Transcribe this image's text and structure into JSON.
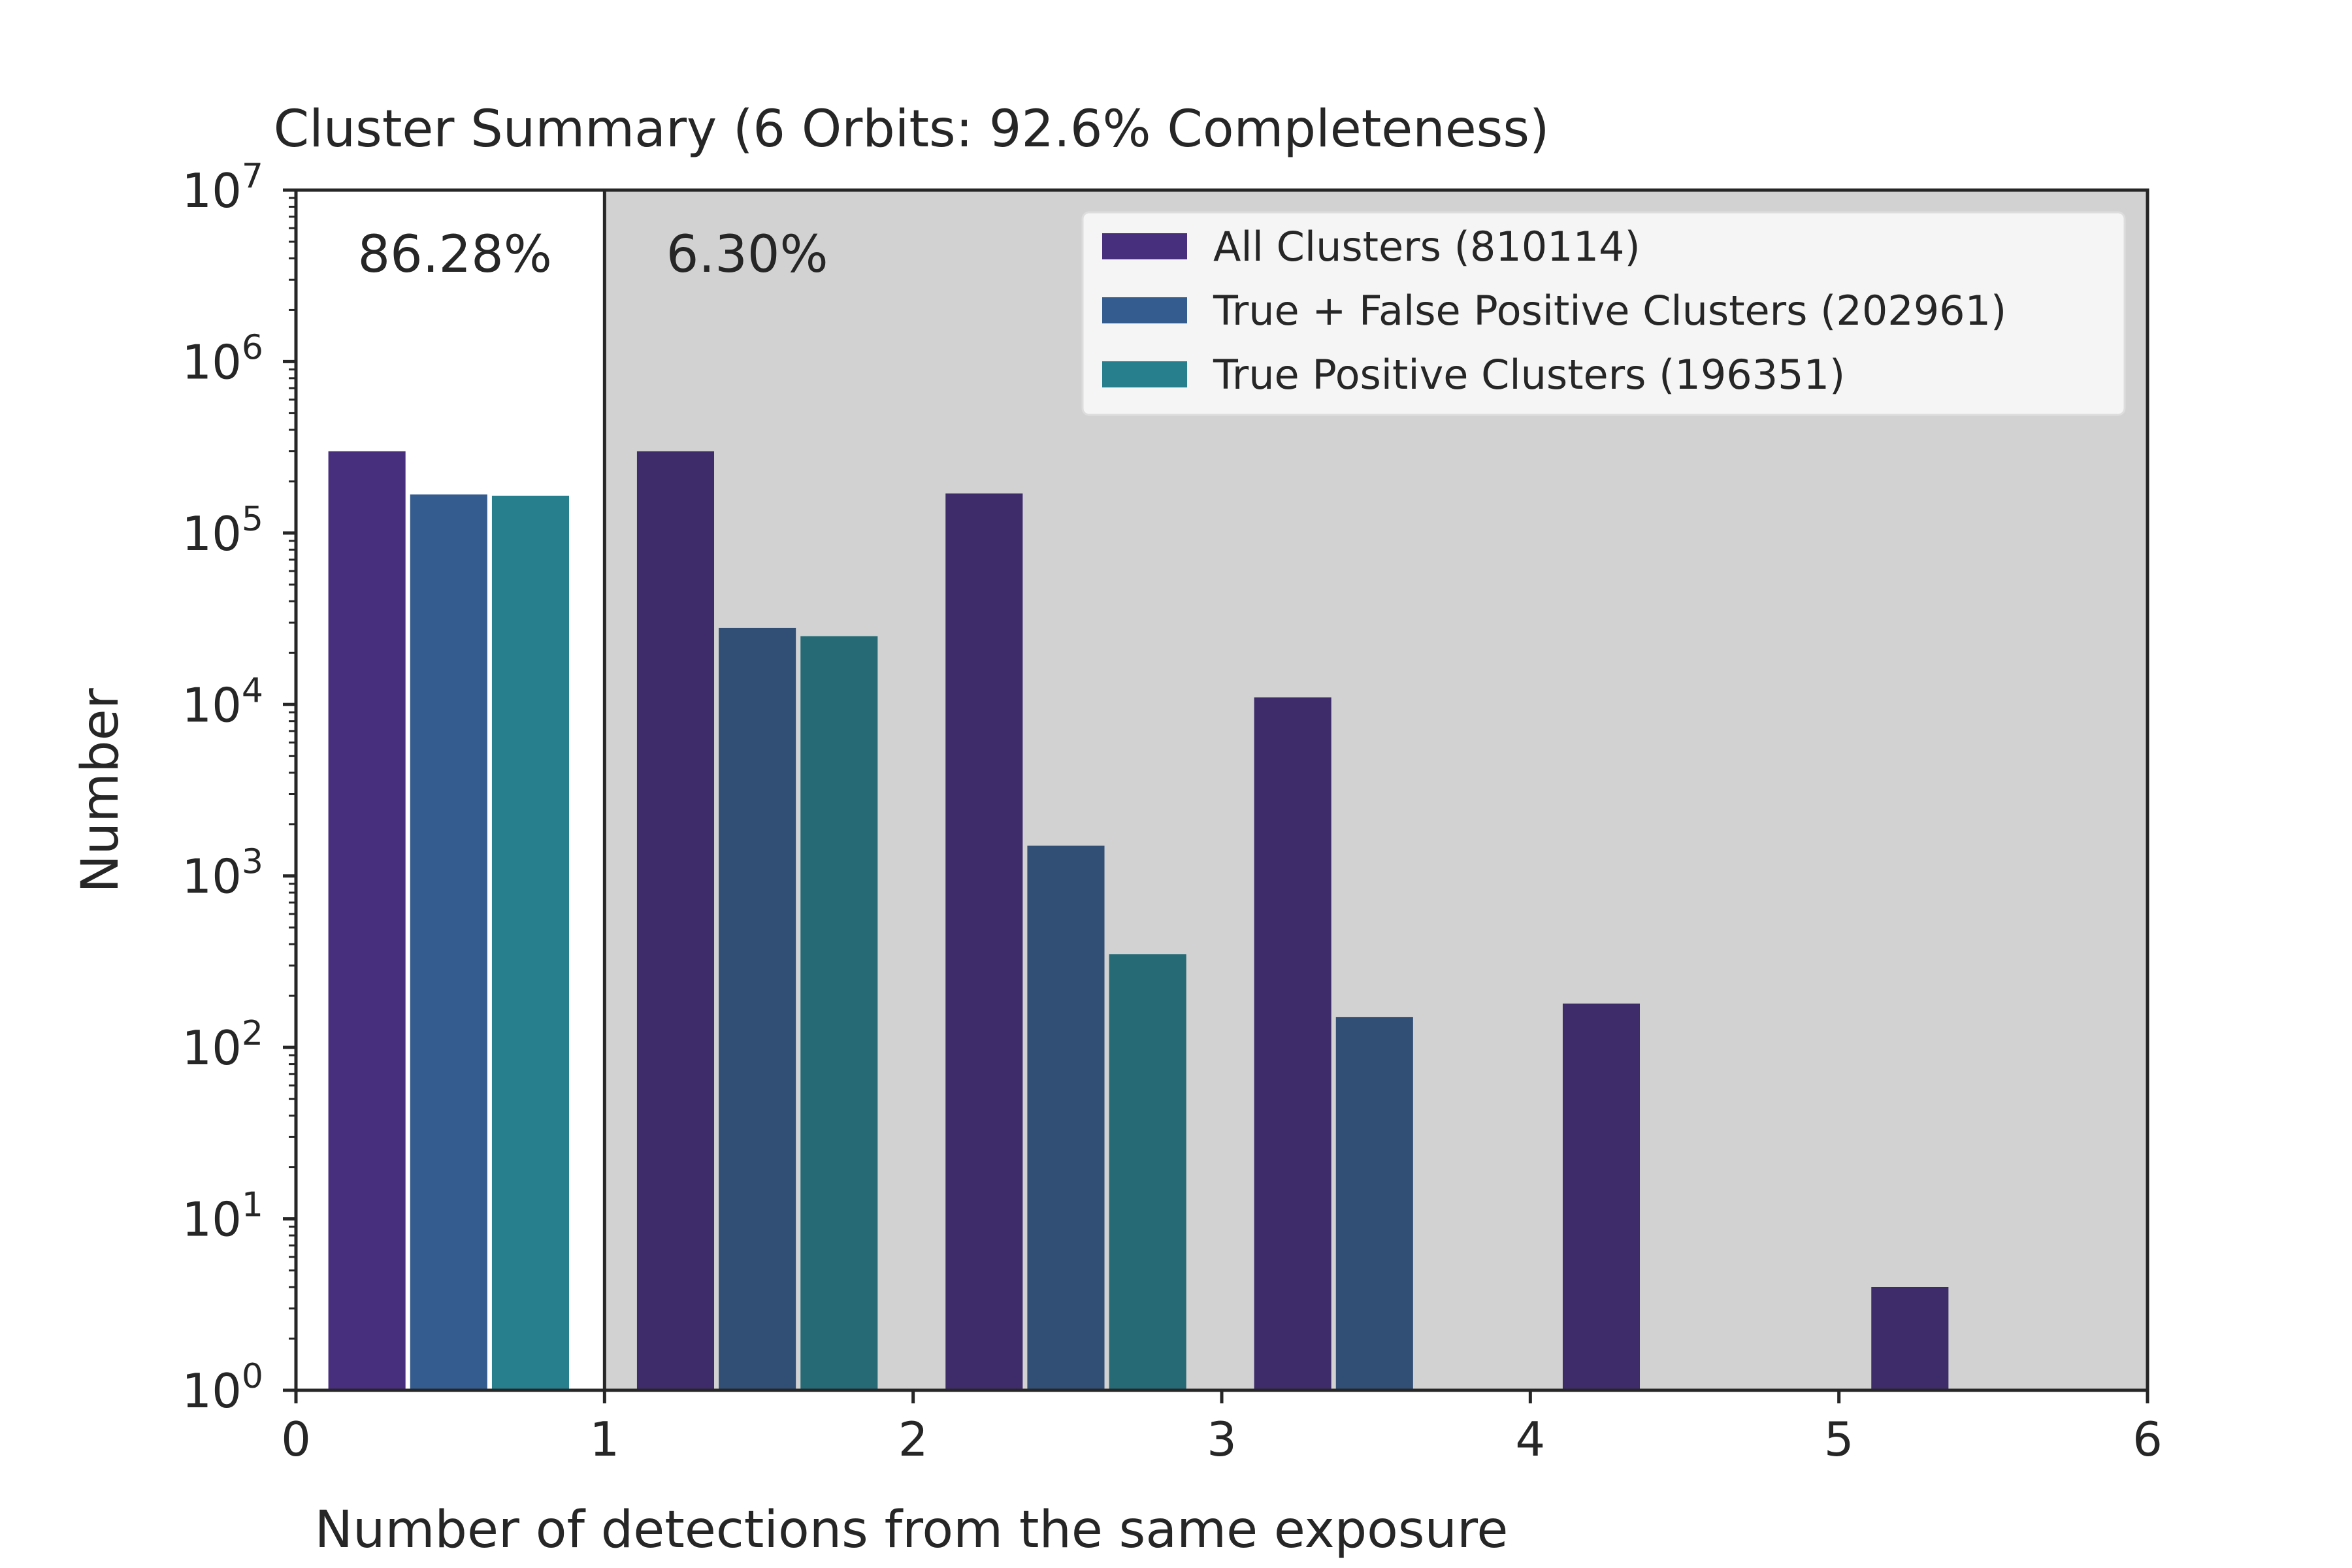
{
  "chart_data": {
    "type": "bar",
    "title": "Cluster Summary (6 Orbits: 92.6% Completeness)",
    "xlabel": "Number of detections from the same exposure",
    "ylabel": "Number",
    "x_scale": "linear",
    "y_scale": "log",
    "xlim": [
      0,
      6
    ],
    "ylim": [
      1,
      10000000
    ],
    "x_ticks": [
      "0",
      "1",
      "2",
      "3",
      "4",
      "5",
      "6"
    ],
    "y_tick_exponents": [
      "0",
      "1",
      "2",
      "3",
      "4",
      "5",
      "6",
      "7"
    ],
    "y_tick_base": "10",
    "legend_position": "top-right",
    "regions": [
      {
        "x0": 0,
        "x1": 1,
        "label": "86.28%",
        "shaded": false
      },
      {
        "x0": 1,
        "x1": 6,
        "label": "6.30%",
        "shaded": true
      }
    ],
    "bins": [
      0,
      1,
      2,
      3,
      4,
      5
    ],
    "series": [
      {
        "name": "All Clusters (810114)",
        "color": "#482f7d",
        "shaded_color": "#3d2c69",
        "values": [
          300000,
          300000,
          170000,
          11000,
          180,
          4
        ]
      },
      {
        "name": "True + False Positive Clusters (202961)",
        "color": "#355c8e",
        "shaded_color": "#314e74",
        "values": [
          168000,
          28000,
          1500,
          150,
          null,
          null
        ]
      },
      {
        "name": "True Positive Clusters (196351)",
        "color": "#277f8e",
        "shaded_color": "#256a75",
        "values": [
          165000,
          25000,
          350,
          null,
          null,
          null
        ]
      }
    ],
    "colors": {
      "shade_region": "#d2d2d2",
      "axis": "#262626",
      "legend_bg": "#f5f5f5"
    }
  }
}
